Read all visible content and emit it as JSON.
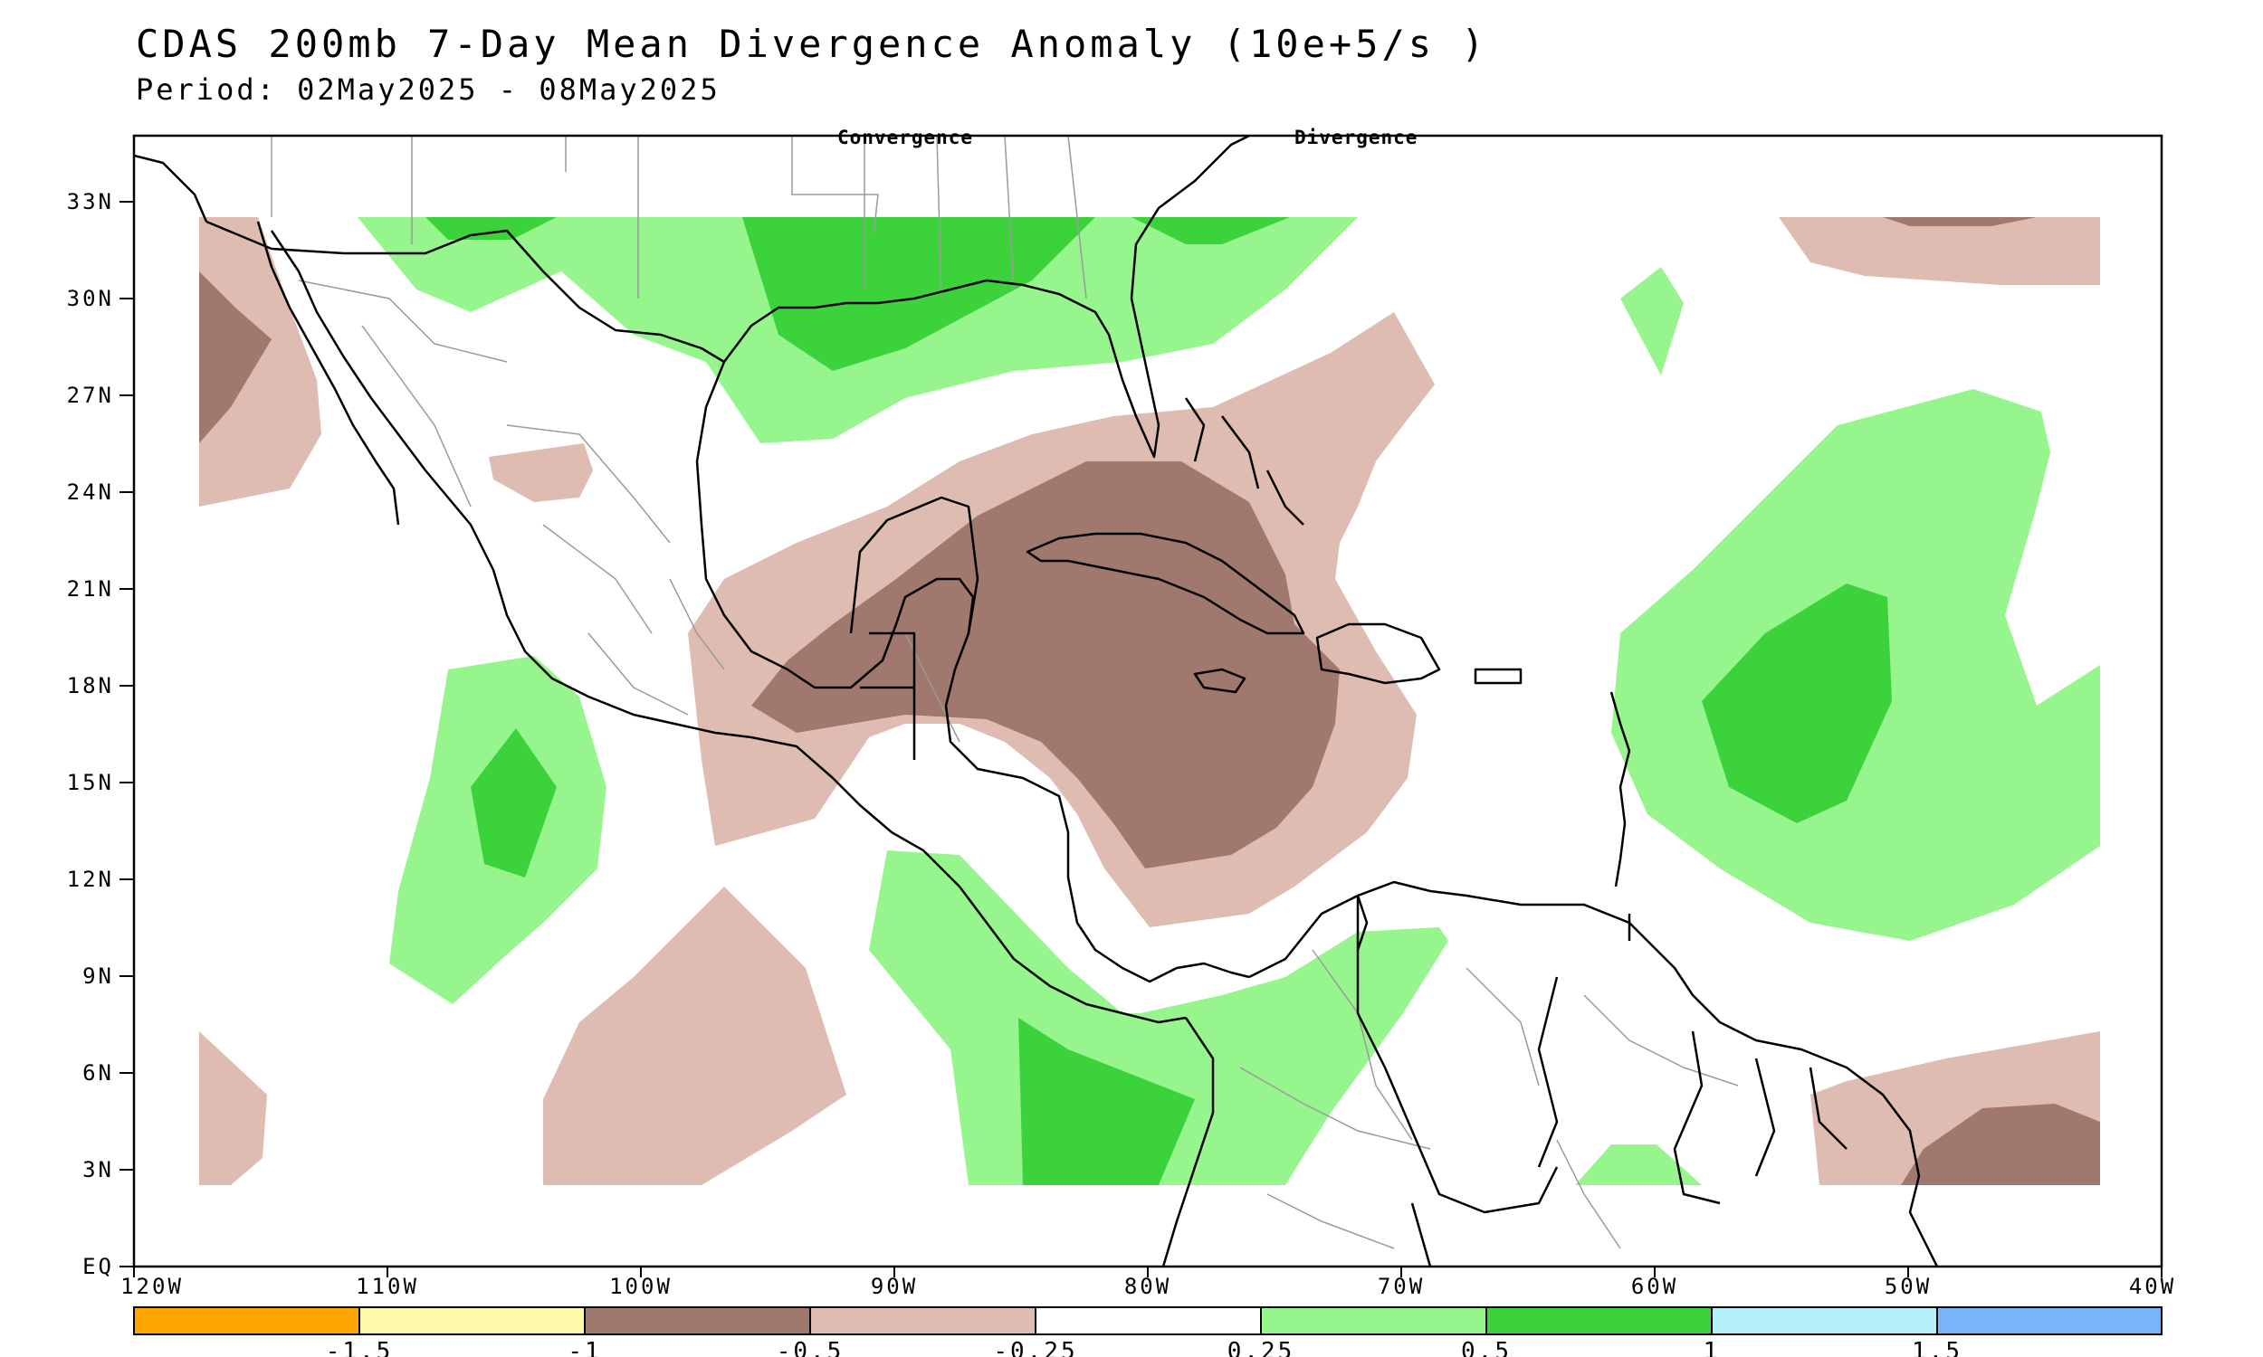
{
  "header": {
    "title": "CDAS 200mb 7-Day Mean Divergence Anomaly (10e+5/s )",
    "subtitle": "Period: 02May2025 - 08May2025"
  },
  "annotations": {
    "left": "Convergence",
    "right": "Divergence"
  },
  "axes": {
    "lon_labels": [
      "120W",
      "110W",
      "100W",
      "90W",
      "80W",
      "70W",
      "60W",
      "50W",
      "40W"
    ],
    "lat_labels": [
      "EQ",
      "3N",
      "6N",
      "9N",
      "12N",
      "15N",
      "18N",
      "21N",
      "24N",
      "27N",
      "30N",
      "33N"
    ]
  },
  "legend": {
    "ticks": [
      "-1.5",
      "-1",
      "-0.5",
      "-0.25",
      "0.25",
      "0.5",
      "1",
      "1.5"
    ],
    "colors": [
      "#ffa500",
      "#fffaaa",
      "#a0786e",
      "#dfbcb2",
      "#ffffff",
      "#96f58c",
      "#3cd23c",
      "#b4f0fa",
      "#78b4fa"
    ]
  },
  "colors": {
    "strong_convergence": "#a0786e",
    "weak_convergence": "#dfbcb2",
    "weak_divergence": "#96f58c",
    "strong_divergence": "#3cd23c",
    "coast": "#000000",
    "borders": "#9a9a9a"
  }
}
